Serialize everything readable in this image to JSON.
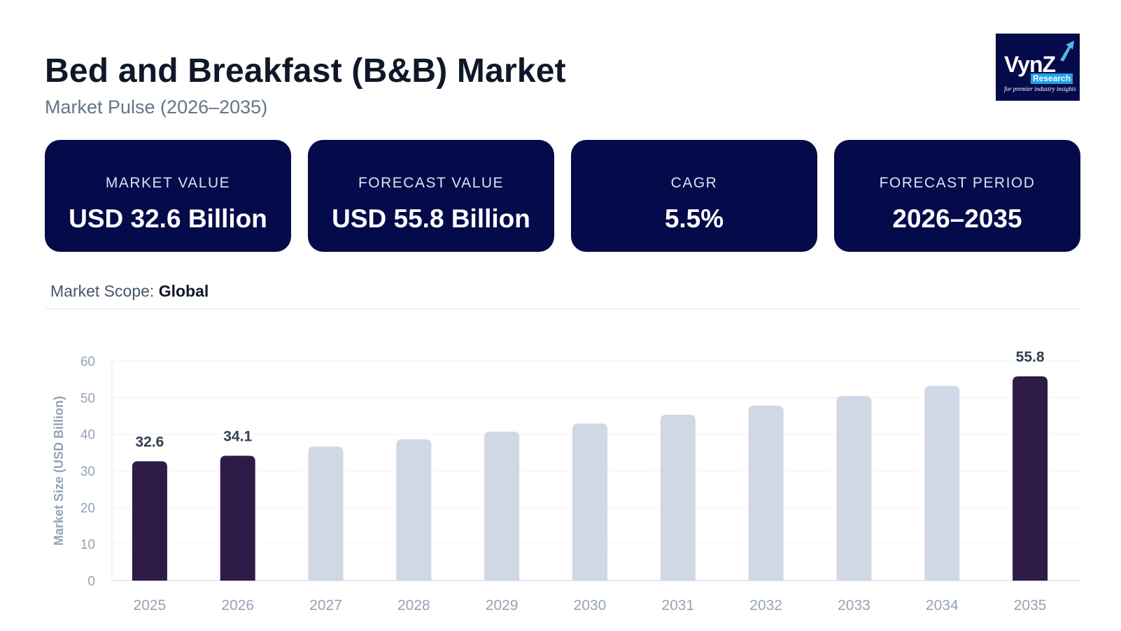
{
  "header": {
    "title": "Bed and Breakfast (B&B) Market",
    "subtitle": "Market Pulse (2026–2035)"
  },
  "logo": {
    "brand": "VynZ",
    "research": "Research",
    "tagline": "for premier industry insights"
  },
  "cards": [
    {
      "label": "MARKET VALUE",
      "value": "USD 32.6 Billion"
    },
    {
      "label": "FORECAST VALUE",
      "value": "USD 55.8 Billion"
    },
    {
      "label": "CAGR",
      "value": "5.5%"
    },
    {
      "label": "FORECAST PERIOD",
      "value": "2026–2035"
    }
  ],
  "scope": {
    "label": "Market Scope:",
    "value": "Global"
  },
  "colors": {
    "card_bg": "#050a4a",
    "bar_highlight": "#2e1b47",
    "bar_muted": "#cfd8e4"
  },
  "chart_data": {
    "type": "bar",
    "ylabel": "Market Size (USD Billion)",
    "ylim": [
      0,
      60
    ],
    "yticks": [
      0,
      10,
      20,
      30,
      40,
      50,
      60
    ],
    "grid": true,
    "categories": [
      "2025",
      "2026",
      "2027",
      "2028",
      "2029",
      "2030",
      "2031",
      "2032",
      "2033",
      "2034",
      "2035"
    ],
    "values": [
      32.6,
      34.1,
      36.6,
      38.6,
      40.7,
      42.9,
      45.3,
      47.8,
      50.4,
      53.2,
      55.8
    ],
    "highlighted": [
      true,
      true,
      false,
      false,
      false,
      false,
      false,
      false,
      false,
      false,
      true
    ],
    "data_labels": [
      "32.6",
      "34.1",
      "",
      "",
      "",
      "",
      "",
      "",
      "",
      "",
      "55.8"
    ]
  }
}
